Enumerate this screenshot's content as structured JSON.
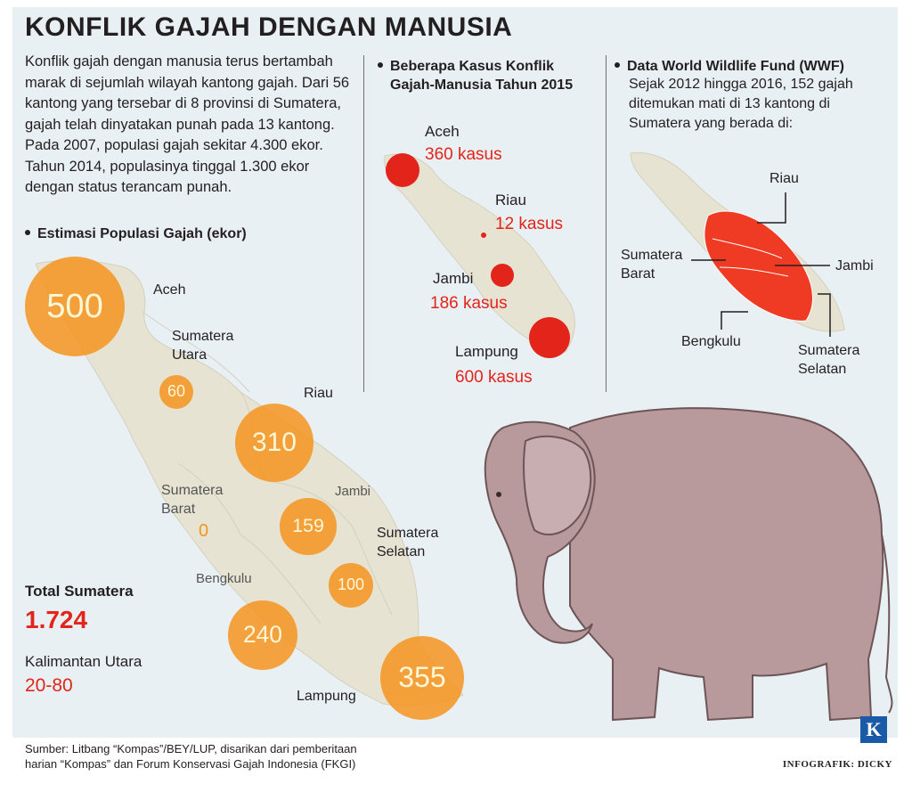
{
  "title": "KONFLIK GAJAH DENGAN MANUSIA",
  "intro": "Konflik gajah dengan manusia terus bertambah marak di sejumlah wilayah kantong gajah. Dari 56 kantong yang tersebar di 8 provinsi di Sumatera, gajah telah dinyatakan punah pada 13 kantong. Pada 2007,  populasi gajah sekitar 4.300 ekor. Tahun 2014, populasinya tinggal 1.300 ekor dengan status terancam punah.",
  "population": {
    "heading": "Estimasi Populasi Gajah (ekor)",
    "regions": [
      {
        "name": "Aceh",
        "value": "500",
        "count": 500
      },
      {
        "name_line1": "Sumatera",
        "name_line2": "Utara",
        "value": "60",
        "count": 60
      },
      {
        "name": "Riau",
        "value": "310",
        "count": 310
      },
      {
        "name_line1": "Sumatera",
        "name_line2": "Barat",
        "value": "0",
        "count": 0
      },
      {
        "name": "Jambi",
        "value": "159",
        "count": 159
      },
      {
        "name_line1": "Sumatera",
        "name_line2": "Selatan",
        "value": "100",
        "count": 100
      },
      {
        "name": "Bengkulu",
        "value": "240",
        "count": 240
      },
      {
        "name": "Lampung",
        "value": "355",
        "count": 355
      }
    ],
    "total_label": "Total Sumatera",
    "total_value": "1.724",
    "kalimantan_label": "Kalimantan Utara",
    "kalimantan_value": "20-80"
  },
  "conflict": {
    "heading_line1": "Beberapa Kasus Konflik",
    "heading_line2": "Gajah-Manusia Tahun 2015",
    "cases": [
      {
        "region": "Aceh",
        "label": "360 kasus",
        "count": 360
      },
      {
        "region": "Riau",
        "label": "12 kasus",
        "count": 12
      },
      {
        "region": "Jambi",
        "label": "186 kasus",
        "count": 186
      },
      {
        "region": "Lampung",
        "label": "600 kasus",
        "count": 600
      }
    ]
  },
  "wwf": {
    "heading": "Data World Wildlife Fund (WWF)",
    "text": "Sejak 2012 hingga 2016, 152 gajah ditemukan mati di 13 kantong di Sumatera yang berada di:",
    "regions": {
      "riau": "Riau",
      "sumbar_line1": "Sumatera",
      "sumbar_line2": "Barat",
      "jambi": "Jambi",
      "bengkulu": "Bengkulu",
      "sumsel_line1": "Sumatera",
      "sumsel_line2": "Selatan"
    }
  },
  "source_line1": "Sumber: Litbang “Kompas”/BEY/LUP, disarikan dari pemberitaan",
  "source_line2": "harian “Kompas” dan Forum Konservasi Gajah Indonesia (FKGI)",
  "credit": "INFOGRAFIK: DICKY",
  "logo_letter": "K",
  "colors": {
    "accent_red": "#e3241b",
    "bubble_orange": "#f5941f",
    "map_fill": "#e6e3d3",
    "wwf_red": "#ef3b24",
    "elephant": "#b8999c"
  }
}
